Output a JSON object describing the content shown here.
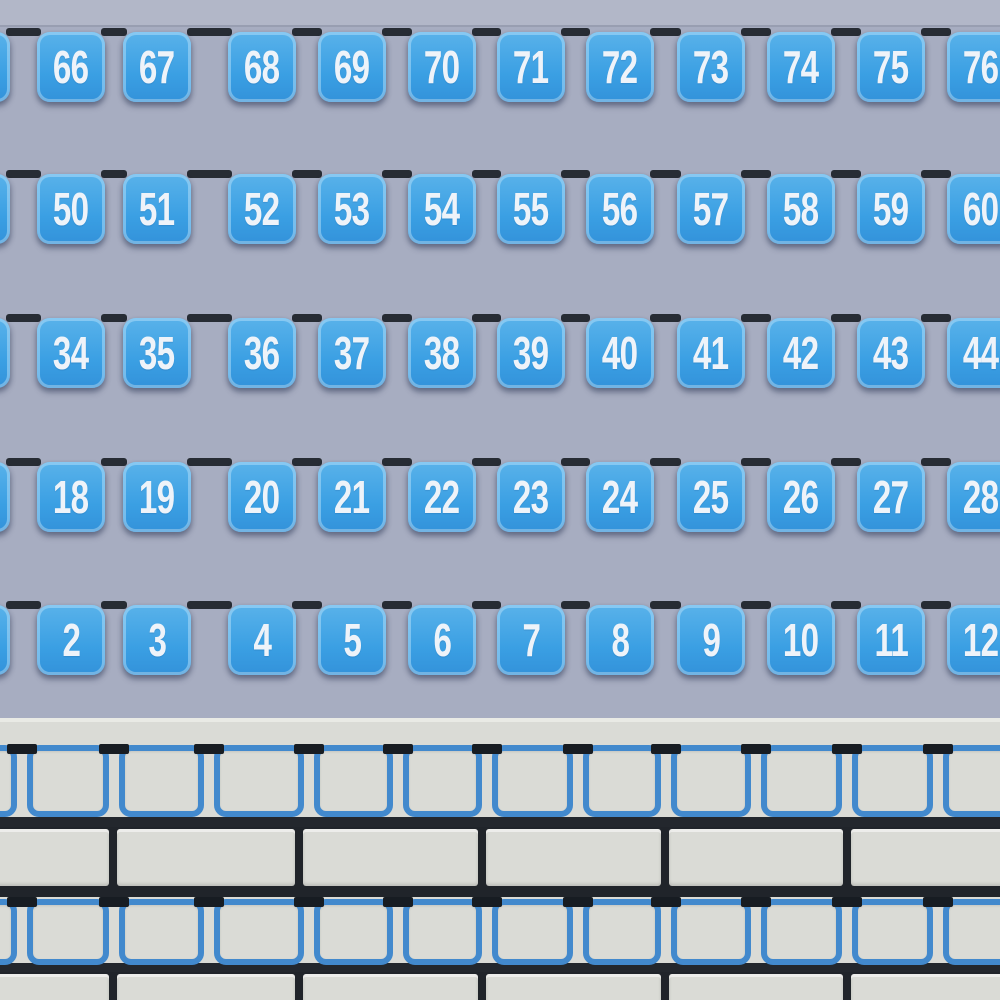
{
  "game": {
    "board_kind": "number-tile wall builder",
    "rails": [
      {
        "numbers": [
          "66",
          "67",
          "68",
          "69",
          "70",
          "71",
          "72",
          "73",
          "74",
          "75",
          "76"
        ],
        "partial_tile_left": true,
        "partial_tile_right": true
      },
      {
        "numbers": [
          "50",
          "51",
          "52",
          "53",
          "54",
          "55",
          "56",
          "57",
          "58",
          "59",
          "60"
        ],
        "partial_tile_left": true,
        "partial_tile_right": true
      },
      {
        "numbers": [
          "34",
          "35",
          "36",
          "37",
          "38",
          "39",
          "40",
          "41",
          "42",
          "43",
          "44"
        ],
        "partial_tile_left": true,
        "partial_tile_right": true
      },
      {
        "numbers": [
          "18",
          "19",
          "20",
          "21",
          "22",
          "23",
          "24",
          "25",
          "26",
          "27",
          "28"
        ],
        "partial_tile_left": true,
        "partial_tile_right": true
      },
      {
        "numbers": [
          "2",
          "3",
          "4",
          "5",
          "6",
          "7",
          "8",
          "9",
          "10",
          "11",
          "12"
        ],
        "partial_tile_left": true,
        "partial_tile_right": true
      }
    ],
    "wall": {
      "slot_rows": 2,
      "slots_per_row": 12,
      "brick_rows": 2,
      "bricks_per_row": 6
    }
  },
  "colors": {
    "bg": "#a7adc1",
    "band": "#b2b7c8",
    "band_line": "#989eb1",
    "tile_hi": "#59b2ea",
    "tile_main": "#3a9fe3",
    "tile_lo": "#3392da",
    "number": "#eef3f9",
    "peg": "#272c34",
    "wall": "#dadbd6",
    "wall_edge": "#e9eae5",
    "slot_border": "#4289cd",
    "slot_peg": "#171c22",
    "mortar": "#20242a",
    "dark_line": "#23272d",
    "brick": "#dadbd6"
  }
}
